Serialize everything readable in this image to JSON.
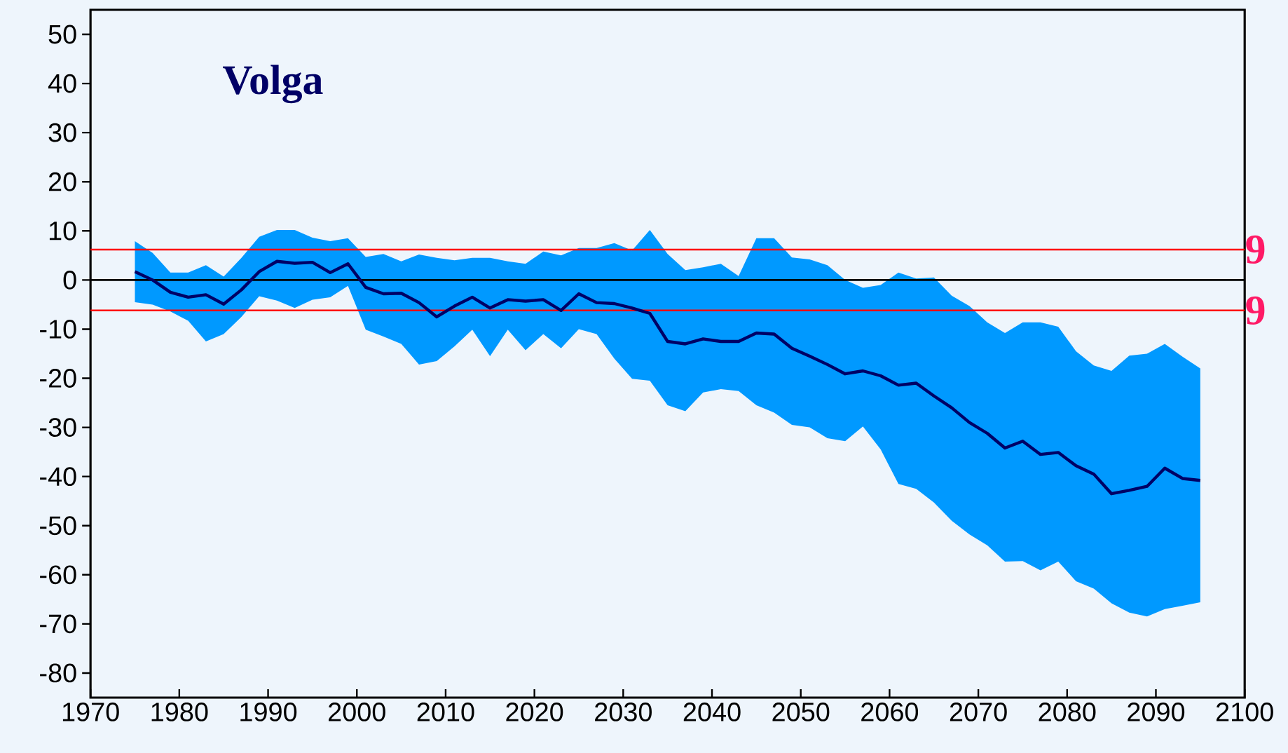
{
  "chart_data": {
    "type": "line",
    "title": "Volga",
    "x": [
      1975,
      1977,
      1979,
      1981,
      1983,
      1985,
      1987,
      1989,
      1991,
      1993,
      1995,
      1997,
      1999,
      2001,
      2003,
      2005,
      2007,
      2009,
      2011,
      2013,
      2015,
      2017,
      2019,
      2021,
      2023,
      2025,
      2027,
      2029,
      2031,
      2033,
      2035,
      2037,
      2039,
      2041,
      2043,
      2045,
      2047,
      2049,
      2051,
      2053,
      2055,
      2057,
      2059,
      2061,
      2063,
      2065,
      2067,
      2069,
      2071,
      2073,
      2075,
      2077,
      2079,
      2081,
      2083,
      2085,
      2087,
      2089,
      2091,
      2093,
      2095
    ],
    "series": [
      {
        "color": "#000066",
        "colors": [
          "#0099ff",
          "#0099ff",
          "#0099ff",
          "#0099ff",
          "#0099ff",
          "#0099ff",
          "#0099ff",
          "#0099ff",
          "#0099ff",
          "#0099ff",
          "#0099ff",
          "#0099ff",
          "#0099ff",
          "#0099ff",
          "#0099ff",
          "#0099ff",
          "#0099ff",
          "#0099ff",
          "#0099ff",
          "#0099ff",
          "#0099ff",
          "#0099ff",
          "#0099ff",
          "#0099ff",
          "#0099ff",
          "#0099ff",
          "#0099ff",
          "#0099ff",
          "#0099ff",
          "#0099ff",
          "#0099ff",
          "#0099ff",
          "#0099ff",
          "#0099ff",
          "#0099ff",
          "#0099ff",
          "#0099ff",
          "#0099ff",
          "#0099ff",
          "#0099ff",
          "#0099ff",
          "#0099ff",
          "#0099ff",
          "#0099ff",
          "#0099ff",
          "#0099ff",
          "#0099ff",
          "#0099ff",
          "#0099ff",
          "#0099ff",
          "#0099ff",
          "#0099ff",
          "#0099ff",
          "#0099ff",
          "#0099ff",
          "#0099ff",
          "#0099ff",
          "#0099ff",
          "#0099ff",
          "#0099ff",
          "#0099ff"
        ],
        "upper": [
          7.9,
          5.5,
          1.5,
          1.5,
          3.0,
          0.7,
          4.5,
          8.8,
          10.2,
          10.2,
          8.6,
          7.9,
          8.5,
          4.7,
          5.3,
          3.8,
          5.2,
          4.5,
          4.0,
          4.5,
          4.5,
          3.8,
          3.3,
          5.8,
          5.0,
          6.5,
          6.5,
          7.5,
          6.0,
          10.2,
          5.3,
          2.0,
          2.6,
          3.3,
          0.8,
          8.5,
          8.5,
          4.6,
          4.2,
          3.0,
          0.0,
          -1.6,
          -1.0,
          1.5,
          0.3,
          0.5,
          -3.2,
          -5.3,
          -8.6,
          -10.8,
          -8.6,
          -8.6,
          -9.5,
          -14.5,
          -17.4,
          -18.5,
          -15.4,
          -15.0,
          -13.0,
          -15.6,
          -18.0
        ],
        "lower": [
          -4.5,
          -5.0,
          -6.4,
          -8.3,
          -12.5,
          -11.0,
          -7.5,
          -3.3,
          -4.2,
          -5.7,
          -4.0,
          -3.5,
          -1.2,
          -10.1,
          -11.5,
          -13.0,
          -17.2,
          -16.5,
          -13.5,
          -10.1,
          -15.5,
          -10.1,
          -14.3,
          -11.0,
          -13.9,
          -10.0,
          -11.0,
          -16.0,
          -20.1,
          -20.5,
          -25.5,
          -26.7,
          -22.9,
          -22.2,
          -22.6,
          -25.5,
          -27.0,
          -29.5,
          -30.0,
          -32.2,
          -32.8,
          -29.8,
          -34.5,
          -41.5,
          -42.5,
          -45.3,
          -49.0,
          -51.8,
          -54.0,
          -57.3,
          -57.2,
          -59.1,
          -57.3,
          -61.3,
          -62.8,
          -65.8,
          -67.7,
          -68.5,
          -67.0,
          -66.3,
          -65.6
        ],
        "values": [
          1.7,
          0,
          -2.5,
          -3.5,
          -3.0,
          -4.9,
          -2.0,
          1.7,
          3.8,
          3.4,
          3.6,
          1.5,
          3.3,
          -1.5,
          -2.8,
          -2.7,
          -4.6,
          -7.5,
          -5.3,
          -3.5,
          -5.7,
          -4.0,
          -4.3,
          -4.0,
          -6.2,
          -2.8,
          -4.6,
          -4.8,
          -5.7,
          -6.8,
          -12.5,
          -13.0,
          -12.0,
          -12.5,
          -12.5,
          -10.8,
          -11.0,
          -13.9,
          -15.5,
          -17.2,
          -19.1,
          -18.5,
          -19.5,
          -21.4,
          -21.0,
          -23.6,
          -26.0,
          -29.0,
          -31.2,
          -34.2,
          -32.8,
          -35.5,
          -35.1,
          -37.8,
          -39.5,
          -43.5,
          -42.8,
          -42.0,
          -38.3,
          -40.4,
          -40.8
        ]
      }
    ],
    "xlim": [
      1970,
      2100
    ],
    "ylim": [
      -85,
      55
    ],
    "xticks": [
      1970,
      1980,
      1990,
      2000,
      2010,
      2020,
      2030,
      2040,
      2050,
      2060,
      2070,
      2080,
      2090,
      2100
    ],
    "yticks": [
      -80,
      -70,
      -60,
      -50,
      -40,
      -30,
      -20,
      -10,
      0,
      10,
      20,
      30,
      40,
      50
    ],
    "ref_lines": [
      {
        "axis": "y",
        "value": 6.2,
        "color": "#ff0000"
      },
      {
        "axis": "y",
        "value": 0,
        "color": "#000000"
      },
      {
        "axis": "y",
        "value": -6.2,
        "color": "#ff0000"
      }
    ],
    "annotations": [
      {
        "text": "9",
        "x": 2100,
        "y": 6.2
      },
      {
        "text": "9",
        "x": 2100,
        "y": -6.2
      }
    ]
  }
}
